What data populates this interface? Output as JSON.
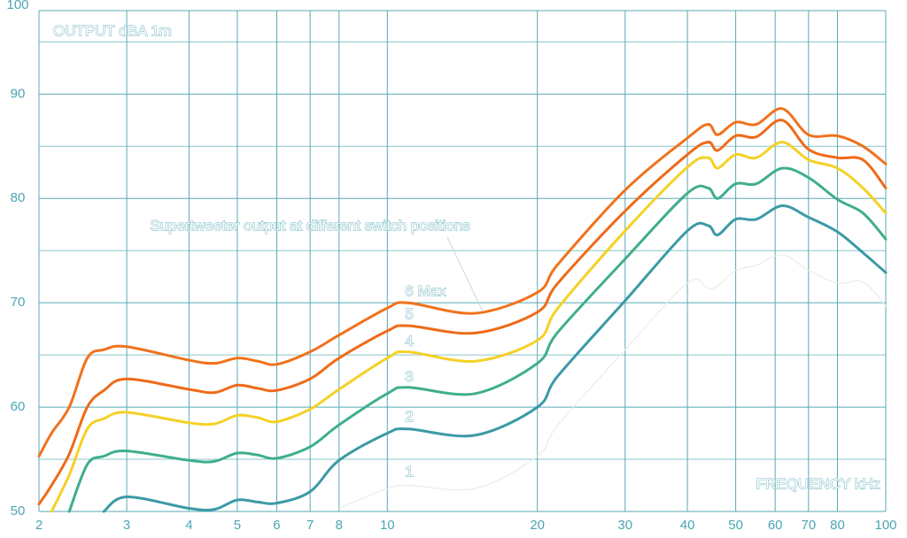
{
  "chart_data": {
    "type": "line",
    "title": "OUTPUT dBA 1m",
    "x_label": "FREQUENCY kHz",
    "annotation": "Supertweeter output at different switch positions",
    "x_log": true,
    "grid": true,
    "xlim": [
      2,
      100
    ],
    "ylim": [
      50,
      98
    ],
    "xticks": [
      2,
      3,
      4,
      5,
      6,
      7,
      8,
      10,
      20,
      30,
      40,
      50,
      60,
      70,
      80,
      100
    ],
    "yticks": [
      50,
      60,
      70,
      80,
      90,
      100
    ],
    "yminor": [
      55,
      65,
      75,
      85,
      95
    ],
    "x": [
      2,
      2.12,
      2.3,
      2.5,
      2.7,
      3,
      4,
      4.5,
      5,
      5.5,
      6,
      7,
      8,
      10,
      11,
      15,
      20,
      22,
      30,
      40,
      44,
      46,
      50,
      55,
      62,
      70,
      80,
      90,
      100
    ],
    "series": [
      {
        "name": "1",
        "color": "#e6eeea",
        "values": [
          null,
          null,
          null,
          null,
          null,
          null,
          null,
          null,
          null,
          null,
          null,
          null,
          50.3,
          52.2,
          52.5,
          52.2,
          55.3,
          58.3,
          65.5,
          71.9,
          71.4,
          71.6,
          73.1,
          73.6,
          74.6,
          73.1,
          71.9,
          72.0,
          69.7
        ]
      },
      {
        "name": "2",
        "color": "#3b9aa6",
        "values": [
          null,
          null,
          null,
          null,
          50.0,
          51.4,
          50.3,
          50.2,
          51.1,
          50.9,
          50.8,
          51.9,
          54.9,
          57.5,
          57.9,
          57.3,
          60.0,
          63.0,
          70.2,
          76.9,
          77.4,
          76.5,
          78.0,
          78.0,
          79.3,
          78.2,
          76.8,
          74.8,
          72.9
        ]
      },
      {
        "name": "3",
        "color": "#3fae8c",
        "values": [
          null,
          null,
          50.0,
          54.5,
          55.3,
          55.8,
          54.9,
          54.8,
          55.6,
          55.4,
          55.1,
          56.2,
          58.3,
          61.3,
          61.9,
          61.3,
          64.2,
          67.2,
          74.2,
          80.5,
          81.0,
          80.0,
          81.4,
          81.4,
          82.9,
          82.0,
          79.9,
          78.6,
          76.1
        ]
      },
      {
        "name": "4",
        "color": "#f4d126",
        "values": [
          null,
          50.0,
          53.5,
          57.9,
          58.9,
          59.5,
          58.5,
          58.4,
          59.2,
          59.0,
          58.6,
          59.8,
          61.7,
          64.7,
          65.3,
          64.4,
          66.4,
          69.5,
          76.9,
          83.0,
          83.9,
          82.9,
          84.2,
          83.9,
          85.4,
          83.7,
          82.9,
          81.0,
          78.6
        ]
      },
      {
        "name": "5",
        "color": "#ef6a18",
        "values": [
          50.7,
          52.5,
          55.5,
          60.0,
          61.6,
          62.7,
          61.7,
          61.4,
          62.1,
          61.8,
          61.6,
          62.7,
          64.7,
          67.3,
          67.8,
          67.1,
          69.1,
          71.9,
          78.8,
          84.2,
          85.4,
          84.6,
          86.0,
          85.9,
          87.5,
          84.7,
          83.9,
          83.7,
          81.0
        ]
      },
      {
        "name": "6 Max",
        "color": "#f0721c",
        "values": [
          55.3,
          57.5,
          60.0,
          64.7,
          65.5,
          65.8,
          64.5,
          64.2,
          64.7,
          64.4,
          64.1,
          65.3,
          66.9,
          69.5,
          70.0,
          69.0,
          71.0,
          73.7,
          80.8,
          85.8,
          87.1,
          86.1,
          87.3,
          87.1,
          88.6,
          86.1,
          86.0,
          85.0,
          83.3
        ]
      }
    ]
  }
}
